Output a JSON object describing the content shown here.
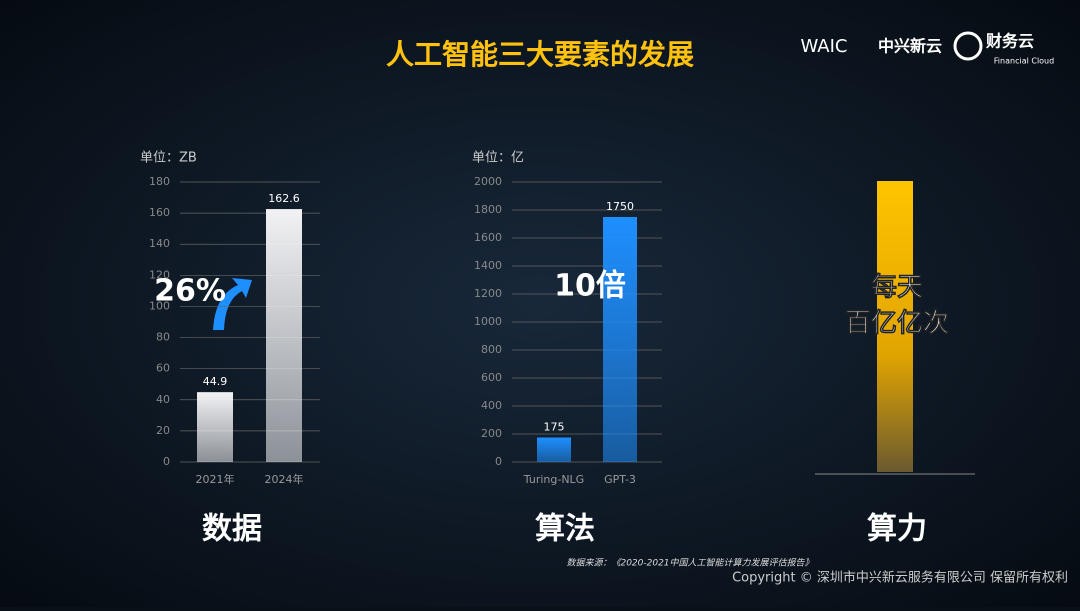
{
  "title": "人工智能三大要素的发展",
  "logos": {
    "waic": "WAIC",
    "brand": "中兴新云",
    "product": "财务云",
    "product_en": "Financial Cloud"
  },
  "chart_data": [
    {
      "type": "bar",
      "y_label": "单位：ZB",
      "categories": [
        "2021年",
        "2024年"
      ],
      "values": [
        44.9,
        162.6
      ],
      "color": "#f2f2f4",
      "ylim": [
        0,
        180
      ],
      "yticks": [
        0,
        20,
        40,
        60,
        80,
        100,
        120,
        140,
        160,
        180
      ],
      "grid": true,
      "annotation": "26%"
    },
    {
      "type": "bar",
      "y_label": "单位：亿",
      "categories": [
        "Turing-NLG",
        "GPT-3"
      ],
      "values": [
        175,
        1750
      ],
      "color": "#1e8fff",
      "ylim": [
        0,
        2000
      ],
      "yticks": [
        0,
        200,
        400,
        600,
        800,
        1000,
        1200,
        1400,
        1600,
        1800,
        2000
      ],
      "grid": true,
      "annotation": "10倍"
    }
  ],
  "compute": {
    "line1": "每天",
    "line2": "百亿亿次"
  },
  "sections": [
    "数据",
    "算法",
    "算力"
  ],
  "source": "数据来源：《2020-2021中国人工智能计算力发展评估报告》",
  "copyright": "Copyright © 深圳市中兴新云服务有限公司 保留所有权利"
}
